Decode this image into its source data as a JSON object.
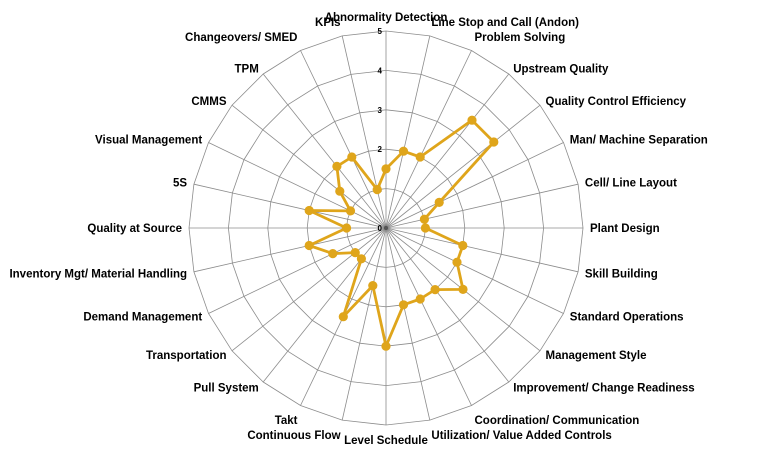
{
  "chart_data": {
    "type": "radar",
    "title": "",
    "rmax": 5,
    "ticks": [
      "0",
      "1",
      "2",
      "3",
      "4",
      "5"
    ],
    "grid": true,
    "series_color": "#DFA51B",
    "categories": [
      "Abnormality Detection",
      "Line Stop and Call (Andon)",
      "Problem Solving",
      "Upstream Quality",
      "Quality Control Efficiency",
      "Man/ Machine Separation",
      "Cell/ Line Layout",
      "Plant Design",
      "Skill Building",
      "Standard Operations",
      "Management Style",
      "Improvement/ Change Readiness",
      "Coordination/ Communication",
      "Utilization/ Value Added Controls",
      "Level Schedule",
      "Continuous Flow",
      "Takt",
      "Pull System",
      "Transportation",
      "Demand Management",
      "Inventory Mgt/ Material Handling",
      "Quality at Source",
      "5S",
      "Visual Management",
      "CMMS",
      "TPM",
      "Changeovers/ SMED",
      "KPIs"
    ],
    "values": [
      1.5,
      2.0,
      2.0,
      3.5,
      3.5,
      1.5,
      1.0,
      1.0,
      2.0,
      2.0,
      2.5,
      2.0,
      2.0,
      2.0,
      3.0,
      1.5,
      2.5,
      1.0,
      1.0,
      1.5,
      2.0,
      1.0,
      2.0,
      1.0,
      1.5,
      2.0,
      2.0,
      1.0
    ]
  }
}
